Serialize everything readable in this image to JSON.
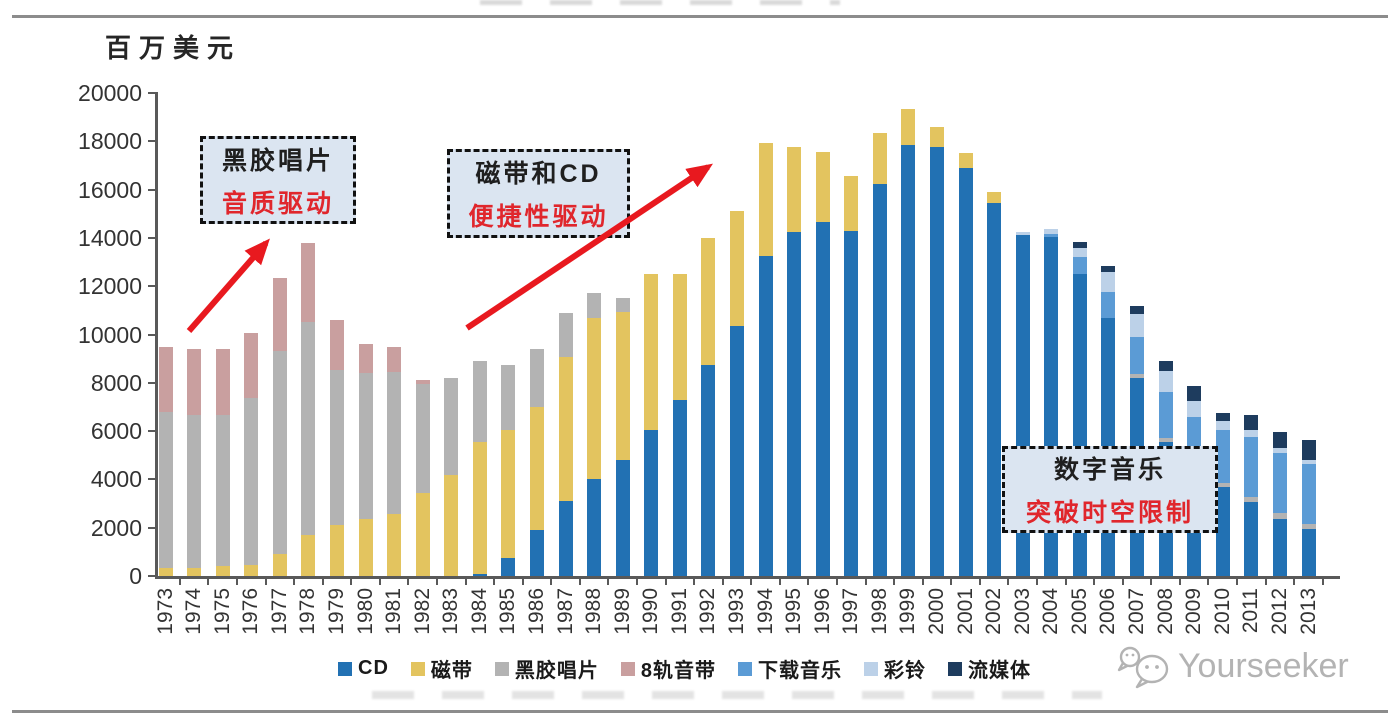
{
  "page": {
    "unit_label": "百万美元",
    "watermark_text": "Yourseeker"
  },
  "annotations": [
    {
      "title": "黑胶唱片",
      "subtitle": "音质驱动"
    },
    {
      "title": "磁带和CD",
      "subtitle": "便捷性驱动"
    },
    {
      "title": "数字音乐",
      "subtitle": "突破时空限制"
    }
  ],
  "chart_data": {
    "type": "bar",
    "stacked": true,
    "title": "",
    "xlabel": "",
    "ylabel": "百万美元",
    "ylim": [
      0,
      20000
    ],
    "ytick_interval": 2000,
    "grid": false,
    "legend_position": "bottom",
    "categories": [
      "1973",
      "1974",
      "1975",
      "1976",
      "1977",
      "1978",
      "1979",
      "1980",
      "1981",
      "1982",
      "1983",
      "1984",
      "1985",
      "1986",
      "1987",
      "1988",
      "1989",
      "1990",
      "1991",
      "1992",
      "1993",
      "1994",
      "1995",
      "1996",
      "1997",
      "1998",
      "1999",
      "2000",
      "2001",
      "2002",
      "2003",
      "2004",
      "2005",
      "2006",
      "2007",
      "2008",
      "2009",
      "2010",
      "2011",
      "2012",
      "2013"
    ],
    "series": [
      {
        "name": "CD",
        "color": "#2271b3",
        "values": [
          0,
          0,
          0,
          0,
          0,
          0,
          0,
          0,
          0,
          0,
          0,
          100,
          750,
          1900,
          3100,
          4000,
          4800,
          6050,
          7300,
          8750,
          10350,
          13250,
          14250,
          14650,
          14300,
          16250,
          17850,
          17750,
          16900,
          15450,
          14100,
          14050,
          12500,
          10700,
          8200,
          5550,
          4800,
          3700,
          3050,
          2350,
          1950
        ]
      },
      {
        "name": "磁带",
        "color": "#e3c45f",
        "values": [
          350,
          350,
          400,
          450,
          900,
          1700,
          2100,
          2350,
          2550,
          3450,
          4200,
          5450,
          5300,
          5100,
          5950,
          6700,
          6150,
          6450,
          5200,
          5250,
          4750,
          4700,
          3500,
          2900,
          2250,
          2100,
          1500,
          850,
          600,
          450,
          0,
          0,
          0,
          0,
          0,
          0,
          0,
          0,
          0,
          0,
          0
        ]
      },
      {
        "name": "黑胶唱片",
        "color": "#b3b3b3",
        "values": [
          6450,
          6300,
          6250,
          6900,
          8400,
          8800,
          6450,
          6050,
          5900,
          4500,
          4000,
          3350,
          2700,
          2400,
          1850,
          1000,
          550,
          0,
          0,
          0,
          0,
          0,
          0,
          0,
          0,
          0,
          0,
          0,
          0,
          0,
          0,
          0,
          0,
          0,
          150,
          150,
          150,
          150,
          200,
          250,
          200
        ]
      },
      {
        "name": "8轨音带",
        "color": "#c99f9f",
        "values": [
          2700,
          2750,
          2750,
          2700,
          3050,
          3300,
          2050,
          1200,
          1050,
          150,
          0,
          0,
          0,
          0,
          0,
          0,
          0,
          0,
          0,
          0,
          0,
          0,
          0,
          0,
          0,
          0,
          0,
          0,
          0,
          0,
          0,
          0,
          0,
          0,
          0,
          0,
          0,
          0,
          0,
          0,
          0
        ]
      },
      {
        "name": "下载音乐",
        "color": "#5b9bd5",
        "values": [
          0,
          0,
          0,
          0,
          0,
          0,
          0,
          0,
          0,
          0,
          0,
          0,
          0,
          0,
          0,
          0,
          0,
          0,
          0,
          0,
          0,
          0,
          0,
          0,
          0,
          0,
          0,
          0,
          0,
          0,
          0,
          100,
          700,
          1050,
          1550,
          1900,
          1650,
          2200,
          2500,
          2500,
          2500
        ]
      },
      {
        "name": "彩铃",
        "color": "#bcd1e8",
        "values": [
          0,
          0,
          0,
          0,
          0,
          0,
          0,
          0,
          0,
          0,
          0,
          0,
          0,
          0,
          0,
          0,
          0,
          0,
          0,
          0,
          0,
          0,
          0,
          0,
          0,
          0,
          0,
          0,
          0,
          0,
          150,
          200,
          400,
          850,
          950,
          900,
          650,
          350,
          300,
          200,
          150
        ]
      },
      {
        "name": "流媒体",
        "color": "#1e3c5e",
        "values": [
          0,
          0,
          0,
          0,
          0,
          0,
          0,
          0,
          0,
          0,
          0,
          0,
          0,
          0,
          0,
          0,
          0,
          0,
          0,
          0,
          0,
          0,
          0,
          0,
          0,
          0,
          0,
          0,
          0,
          0,
          0,
          0,
          250,
          250,
          350,
          400,
          600,
          350,
          600,
          650,
          850
        ]
      }
    ]
  },
  "colors": {
    "arrow_red": "#e8191f",
    "callout_fill": "#dbe5f1",
    "axis": "#595959",
    "watermark_gray": "#b3b3b3"
  }
}
